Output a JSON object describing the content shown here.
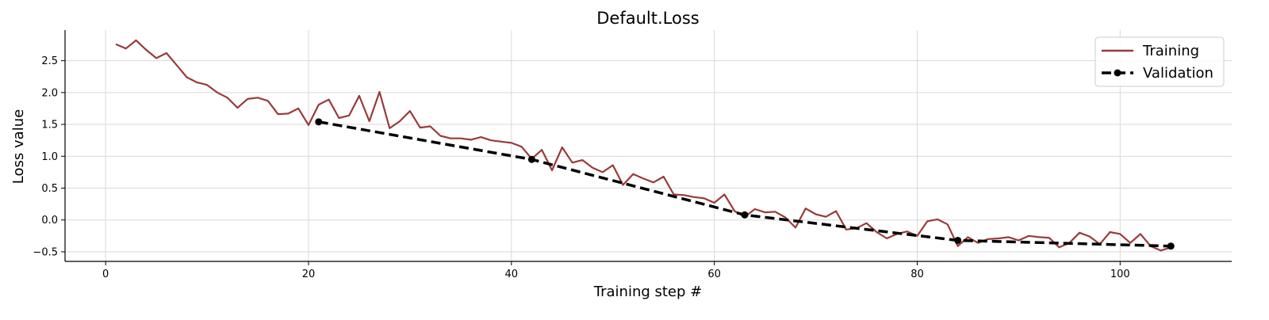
{
  "chart_data": {
    "type": "line",
    "title": "Default.Loss",
    "xlabel": "Training step #",
    "ylabel": "Loss value",
    "xlim": [
      -4,
      111
    ],
    "ylim": [
      -0.65,
      2.98
    ],
    "xticks": [
      0,
      20,
      40,
      60,
      80,
      100
    ],
    "yticks": [
      -0.5,
      0.0,
      0.5,
      1.0,
      1.5,
      2.0,
      2.5
    ],
    "xtick_labels": [
      "0",
      "20",
      "40",
      "60",
      "80",
      "100"
    ],
    "ytick_labels": [
      "−0.5",
      "0.0",
      "0.5",
      "1.0",
      "1.5",
      "2.0",
      "2.5"
    ],
    "grid": true,
    "legend": "top-right",
    "series": [
      {
        "name": "Training",
        "color": "#9b3a3a",
        "style": "solid",
        "x": [
          1,
          2,
          3,
          4,
          5,
          6,
          7,
          8,
          9,
          10,
          11,
          12,
          13,
          14,
          15,
          16,
          17,
          18,
          19,
          20,
          21,
          22,
          23,
          24,
          25,
          26,
          27,
          28,
          29,
          30,
          31,
          32,
          33,
          34,
          35,
          36,
          37,
          38,
          39,
          40,
          41,
          42,
          43,
          44,
          45,
          46,
          47,
          48,
          49,
          50,
          51,
          52,
          53,
          54,
          55,
          56,
          57,
          58,
          59,
          60,
          61,
          62,
          63,
          64,
          65,
          66,
          67,
          68,
          69,
          70,
          71,
          72,
          73,
          74,
          75,
          76,
          77,
          78,
          79,
          80,
          81,
          82,
          83,
          84,
          85,
          86,
          87,
          88,
          89,
          90,
          91,
          92,
          93,
          94,
          95,
          96,
          97,
          98,
          99,
          100,
          101,
          102,
          103,
          104,
          105
        ],
        "y": [
          2.76,
          2.69,
          2.82,
          2.67,
          2.54,
          2.62,
          2.43,
          2.24,
          2.16,
          2.12,
          2.0,
          1.92,
          1.76,
          1.9,
          1.92,
          1.87,
          1.66,
          1.67,
          1.75,
          1.49,
          1.81,
          1.89,
          1.6,
          1.64,
          1.95,
          1.55,
          2.01,
          1.44,
          1.55,
          1.71,
          1.45,
          1.47,
          1.32,
          1.28,
          1.28,
          1.26,
          1.3,
          1.25,
          1.23,
          1.21,
          1.15,
          0.96,
          1.1,
          0.78,
          1.14,
          0.9,
          0.94,
          0.82,
          0.75,
          0.86,
          0.55,
          0.72,
          0.65,
          0.59,
          0.68,
          0.4,
          0.39,
          0.36,
          0.34,
          0.27,
          0.4,
          0.14,
          0.05,
          0.17,
          0.12,
          0.13,
          0.04,
          -0.12,
          0.18,
          0.09,
          0.05,
          0.14,
          -0.15,
          -0.13,
          -0.05,
          -0.19,
          -0.29,
          -0.22,
          -0.18,
          -0.25,
          -0.02,
          0.01,
          -0.07,
          -0.41,
          -0.27,
          -0.36,
          -0.3,
          -0.29,
          -0.27,
          -0.32,
          -0.25,
          -0.27,
          -0.28,
          -0.43,
          -0.36,
          -0.2,
          -0.26,
          -0.38,
          -0.19,
          -0.22,
          -0.36,
          -0.22,
          -0.41,
          -0.48,
          -0.43
        ]
      },
      {
        "name": "Validation",
        "color": "#000000",
        "style": "dashed",
        "marker": "circle",
        "x": [
          21,
          42,
          63,
          84,
          105
        ],
        "y": [
          1.54,
          0.95,
          0.08,
          -0.32,
          -0.41
        ]
      }
    ]
  }
}
